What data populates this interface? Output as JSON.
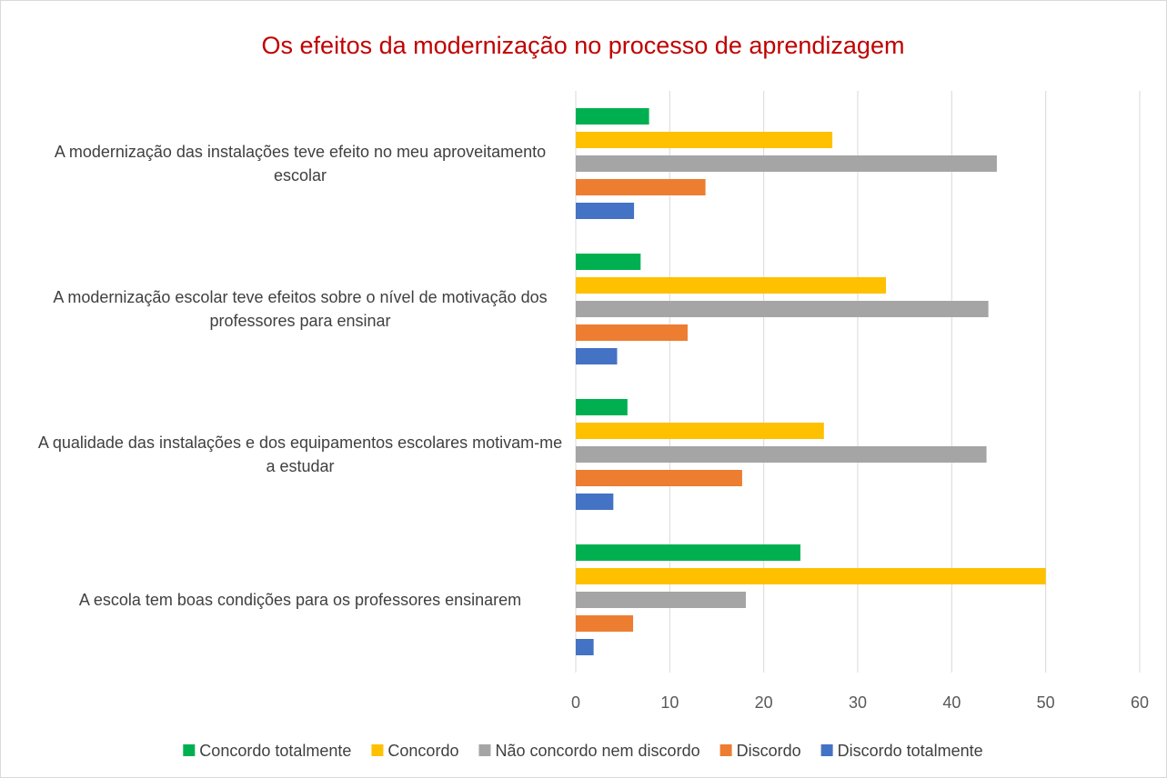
{
  "chart_data": {
    "type": "barh",
    "title": "Os efeitos da modernização no processo de aprendizagem",
    "categories": [
      "A modernização das instalações teve efeito no meu aproveitamento escolar",
      "A modernização escolar teve efeitos sobre o nível de motivação dos professores para ensinar",
      "A qualidade das instalações e dos equipamentos escolares motivam-me a estudar",
      "A escola tem boas condições para os professores ensinarem"
    ],
    "series": [
      {
        "name": "Concordo totalmente",
        "color": "#00b050",
        "values": [
          7.8,
          6.9,
          5.5,
          23.9
        ]
      },
      {
        "name": "Concordo",
        "color": "#ffc000",
        "values": [
          27.3,
          33.0,
          26.4,
          50
        ]
      },
      {
        "name": "Não concordo nem discordo",
        "color": "#a5a5a5",
        "values": [
          44.8,
          43.9,
          43.7,
          18.1
        ]
      },
      {
        "name": "Discordo",
        "color": "#ed7d31",
        "values": [
          13.8,
          11.9,
          17.7,
          6.1
        ]
      },
      {
        "name": "Discordo totalmente",
        "color": "#4472c4",
        "values": [
          6.2,
          4.4,
          4.0,
          1.9
        ]
      }
    ],
    "xlim": [
      0,
      60
    ],
    "xticks": [
      0,
      10,
      20,
      30,
      40,
      50,
      60
    ],
    "grid": true
  }
}
